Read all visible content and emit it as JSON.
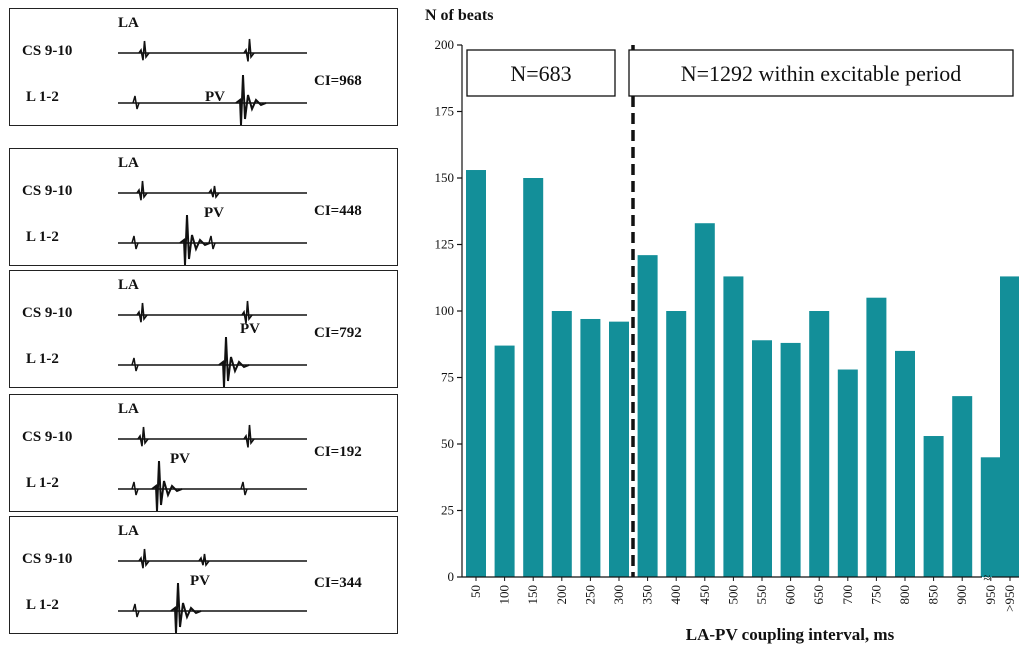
{
  "ecg_panels": [
    {
      "channel_top": "CS 9-10",
      "channel_bottom": "L 1-2",
      "la_label": "LA",
      "pv_label": "PV",
      "ci_label": "CI=968"
    },
    {
      "channel_top": "CS 9-10",
      "channel_bottom": "L 1-2",
      "la_label": "LA",
      "pv_label": "PV",
      "ci_label": "CI=448"
    },
    {
      "channel_top": "CS 9-10",
      "channel_bottom": "L 1-2",
      "la_label": "LA",
      "pv_label": "PV",
      "ci_label": "CI=792"
    },
    {
      "channel_top": "CS 9-10",
      "channel_bottom": "L 1-2",
      "la_label": "LA",
      "pv_label": "PV",
      "ci_label": "CI=192"
    },
    {
      "channel_top": "CS 9-10",
      "channel_bottom": "L 1-2",
      "la_label": "LA",
      "pv_label": "PV",
      "ci_label": "CI=344"
    }
  ],
  "chart_data": {
    "type": "bar",
    "title": "",
    "ylabel": "N of beats",
    "xlabel": "LA-PV coupling interval, ms",
    "ylim": [
      0,
      200
    ],
    "yticks": [
      0,
      25,
      50,
      75,
      100,
      125,
      150,
      175,
      200
    ],
    "categories": [
      "50",
      "100",
      "150",
      "200",
      "250",
      "300",
      "350",
      "400",
      "450",
      "500",
      "550",
      "600",
      "650",
      "700",
      "750",
      "800",
      "850",
      "900",
      "950",
      ">950"
    ],
    "values": [
      153,
      87,
      150,
      100,
      97,
      96,
      121,
      100,
      133,
      113,
      89,
      88,
      100,
      78,
      105,
      85,
      53,
      68,
      45,
      113
    ],
    "bar_color": "#138f99",
    "divider_after_category": "300",
    "axis_break_marker": "≈",
    "annotations": [
      "N=683",
      "N=1292 within excitable period"
    ],
    "grid": false,
    "legend": "none"
  }
}
